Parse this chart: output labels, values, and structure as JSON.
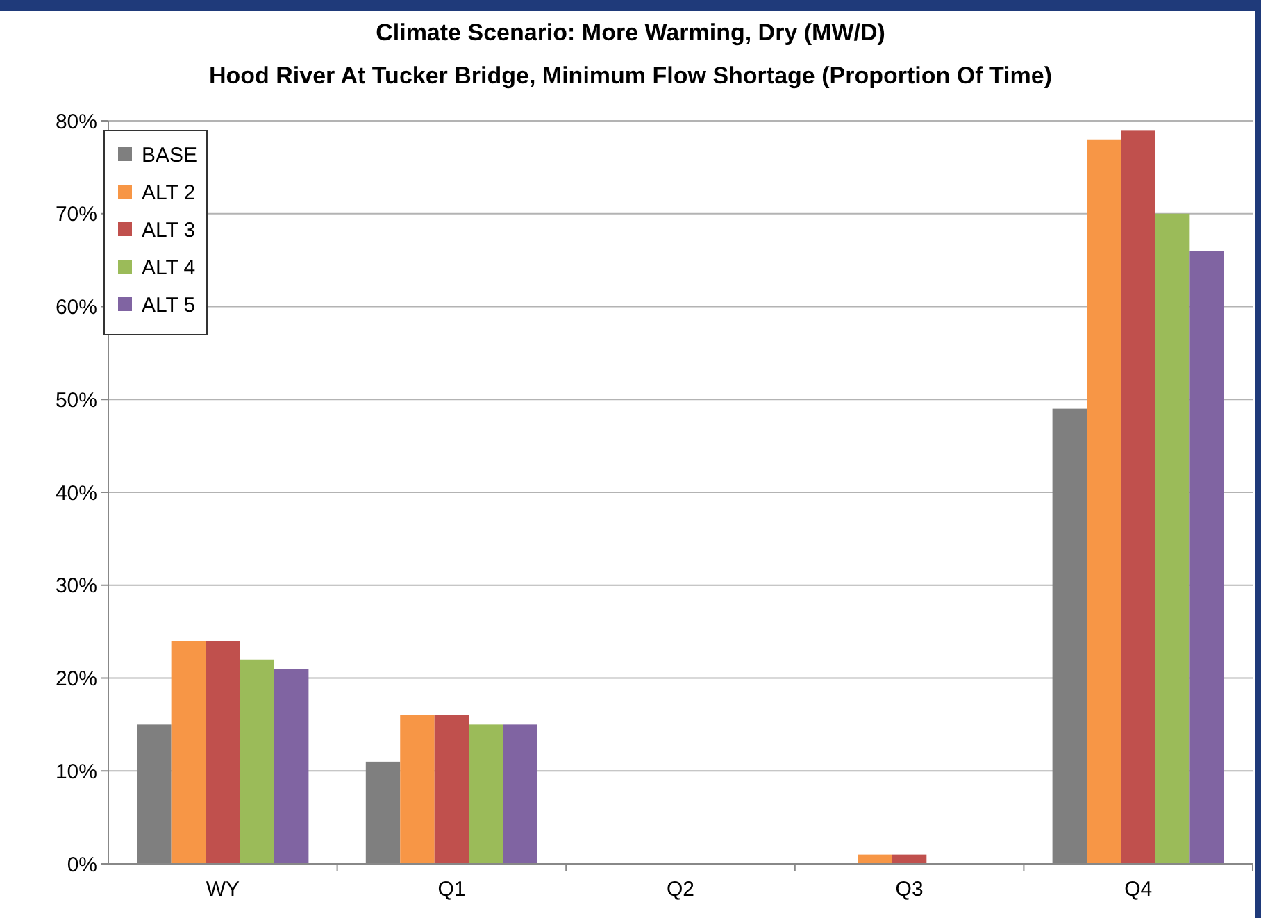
{
  "chart_data": {
    "type": "bar",
    "title": "Climate Scenario:  More Warming, Dry (MW/D)",
    "subtitle": "Hood River At Tucker Bridge, Minimum Flow Shortage (Proportion Of Time)",
    "categories": [
      "WY",
      "Q1",
      "Q2",
      "Q3",
      "Q4"
    ],
    "series": [
      {
        "name": "BASE",
        "color": "#7f7f7f",
        "values": [
          15,
          11,
          0,
          0,
          49
        ]
      },
      {
        "name": "ALT 2",
        "color": "#f79646",
        "values": [
          24,
          16,
          0,
          1,
          78
        ]
      },
      {
        "name": "ALT 3",
        "color": "#c0504d",
        "values": [
          24,
          16,
          0,
          1,
          79
        ]
      },
      {
        "name": "ALT 4",
        "color": "#9bbb59",
        "values": [
          22,
          15,
          0,
          0,
          70
        ]
      },
      {
        "name": "ALT 5",
        "color": "#8064a2",
        "values": [
          21,
          15,
          0,
          0,
          66
        ]
      }
    ],
    "ylim": [
      0,
      80
    ],
    "yticks": [
      {
        "value": 0,
        "label": "0%"
      },
      {
        "value": 10,
        "label": "10%"
      },
      {
        "value": 20,
        "label": "20%"
      },
      {
        "value": 30,
        "label": "30%"
      },
      {
        "value": 40,
        "label": "40%"
      },
      {
        "value": 50,
        "label": "50%"
      },
      {
        "value": 60,
        "label": "60%"
      },
      {
        "value": 70,
        "label": "70%"
      },
      {
        "value": 80,
        "label": "80%"
      }
    ],
    "grid": "y",
    "legend": "top left"
  }
}
